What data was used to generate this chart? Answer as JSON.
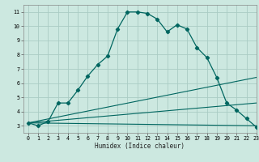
{
  "xlabel": "Humidex (Indice chaleur)",
  "bg_color": "#cce8e0",
  "grid_color": "#aaccc4",
  "line_color": "#006660",
  "series1_x": [
    0,
    1,
    2,
    3,
    4,
    5,
    6,
    7,
    8,
    9,
    10,
    11,
    12,
    13,
    14,
    15,
    16,
    17,
    18,
    19,
    20,
    21,
    22,
    23
  ],
  "series1_y": [
    3.2,
    3.0,
    3.3,
    4.6,
    4.6,
    5.5,
    6.5,
    7.3,
    7.9,
    9.8,
    11.0,
    11.0,
    10.9,
    10.5,
    9.6,
    10.1,
    9.8,
    8.5,
    7.8,
    6.4,
    4.6,
    4.1,
    3.5,
    2.9
  ],
  "series2_x": [
    0,
    23
  ],
  "series2_y": [
    3.2,
    6.4
  ],
  "series3_x": [
    0,
    23
  ],
  "series3_y": [
    3.2,
    4.6
  ],
  "series4_x": [
    0,
    23
  ],
  "series4_y": [
    3.2,
    3.0
  ],
  "xlim": [
    -0.5,
    23
  ],
  "ylim": [
    2.5,
    11.5
  ],
  "xticks": [
    0,
    1,
    2,
    3,
    4,
    5,
    6,
    7,
    8,
    9,
    10,
    11,
    12,
    13,
    14,
    15,
    16,
    17,
    18,
    19,
    20,
    21,
    22,
    23
  ],
  "yticks": [
    3,
    4,
    5,
    6,
    7,
    8,
    9,
    10,
    11
  ]
}
